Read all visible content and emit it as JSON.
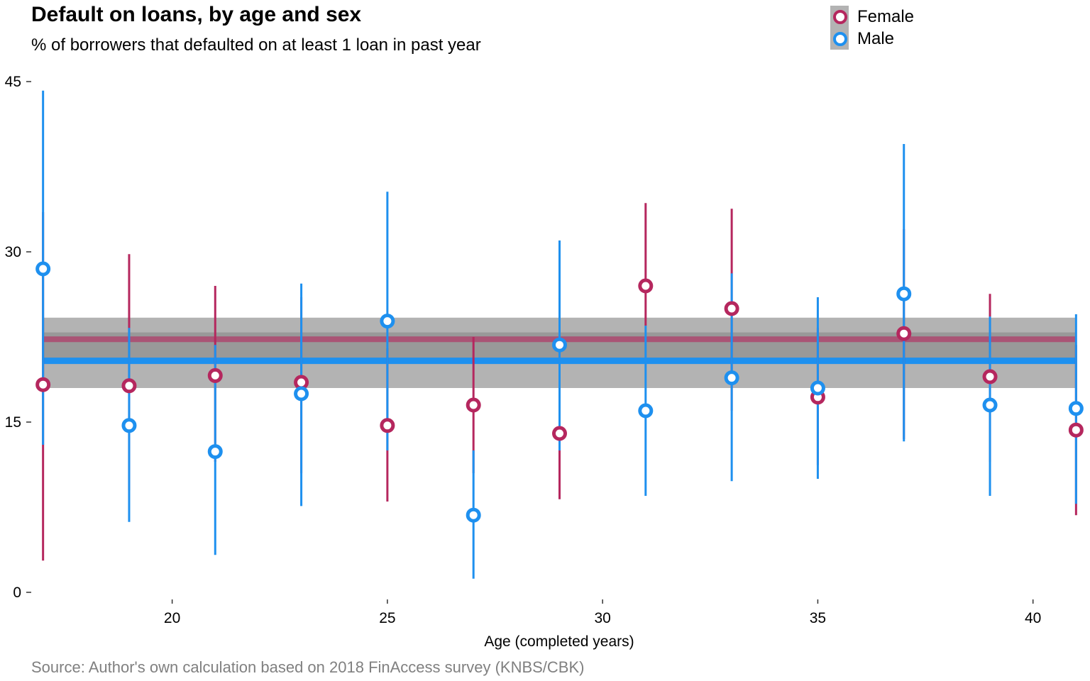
{
  "chart_data": {
    "type": "scatter",
    "title": "Default on loans, by age and sex",
    "subtitle": "% of borrowers that defaulted on at least 1 loan in past year",
    "xlabel": "Age (completed years)",
    "ylabel": "",
    "caption": "Source: Author's own calculation based on 2018 FinAccess survey (KNBS/CBK)",
    "xlim": [
      16,
      42
    ],
    "ylim": [
      0,
      45
    ],
    "x_ticks": [
      20,
      25,
      30,
      35,
      40
    ],
    "y_ticks": [
      0,
      15,
      30,
      45
    ],
    "grid": false,
    "legend_position": "top-right",
    "band": {
      "low": 18.0,
      "high": 24.2,
      "color": "#b3b3b3",
      "x_range": [
        17,
        41
      ]
    },
    "series": [
      {
        "name": "Female",
        "color": "#b5275e",
        "mean": 22.3,
        "x": [
          17,
          19,
          21,
          23,
          25,
          27,
          29,
          31,
          33,
          35,
          37,
          39,
          41
        ],
        "y": [
          18.3,
          18.2,
          19.1,
          18.5,
          14.7,
          16.5,
          14.0,
          27.0,
          25.0,
          17.2,
          22.8,
          19.0,
          14.3
        ],
        "low": [
          2.8,
          9.0,
          11.5,
          10.5,
          8.0,
          10.5,
          8.2,
          23.5,
          16.0,
          11.2,
          13.5,
          11.5,
          6.8
        ],
        "high": [
          33.5,
          29.8,
          27.0,
          26.0,
          21.5,
          22.5,
          19.5,
          34.3,
          33.8,
          23.3,
          32.0,
          26.3,
          21.8
        ]
      },
      {
        "name": "Male",
        "color": "#1e90ef",
        "mean": 20.4,
        "x": [
          17,
          19,
          21,
          23,
          25,
          27,
          29,
          31,
          33,
          35,
          37,
          39,
          41
        ],
        "y": [
          28.5,
          14.7,
          12.4,
          17.5,
          23.9,
          6.8,
          21.8,
          16.0,
          18.9,
          18.0,
          26.3,
          16.5,
          16.2
        ],
        "low": [
          13.0,
          6.2,
          3.3,
          7.6,
          12.5,
          1.2,
          12.5,
          8.5,
          9.8,
          10.0,
          13.3,
          8.5,
          7.8
        ],
        "high": [
          44.2,
          23.3,
          21.8,
          27.2,
          35.3,
          12.5,
          31.0,
          23.5,
          28.1,
          26.0,
          39.5,
          24.3,
          24.5
        ]
      }
    ]
  }
}
